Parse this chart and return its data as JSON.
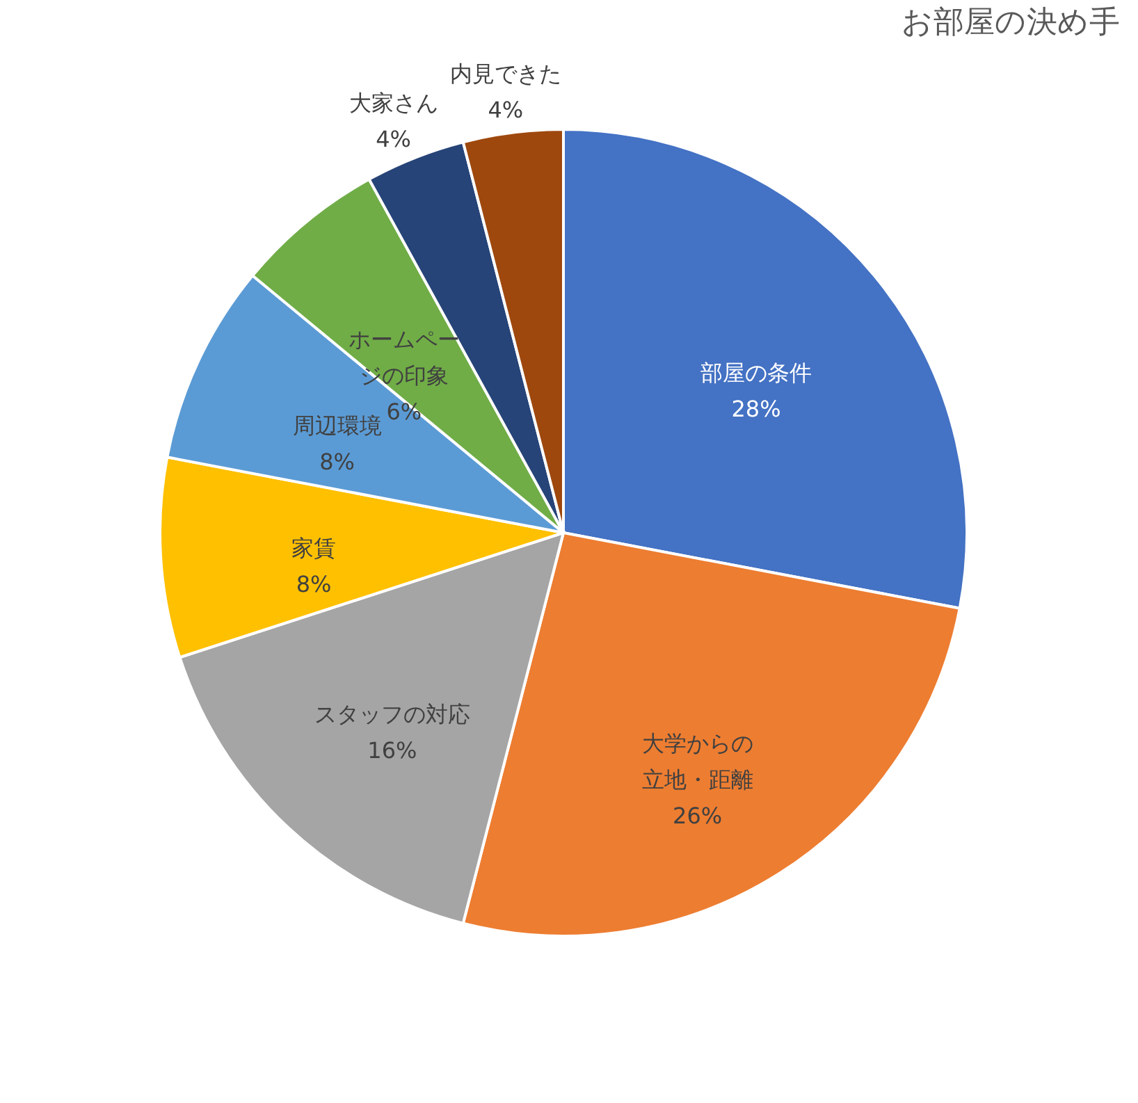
{
  "chart_data": {
    "type": "pie",
    "title": "お部屋の決め手",
    "categories": [
      "部屋の条件",
      "大学からの立地・距離",
      "スタッフの対応",
      "家賃",
      "周辺環境",
      "ホームページの印象",
      "大家さん",
      "内見できた"
    ],
    "values": [
      28,
      26,
      16,
      8,
      8,
      6,
      4,
      4
    ],
    "value_labels": [
      "28%",
      "26%",
      "16%",
      "8%",
      "8%",
      "6%",
      "4%",
      "4%"
    ],
    "colors": [
      "#4472c4",
      "#ed7d31",
      "#a5a5a5",
      "#ffc000",
      "#5b9bd5",
      "#70ad47",
      "#264478",
      "#9e480e"
    ],
    "legend": false
  }
}
